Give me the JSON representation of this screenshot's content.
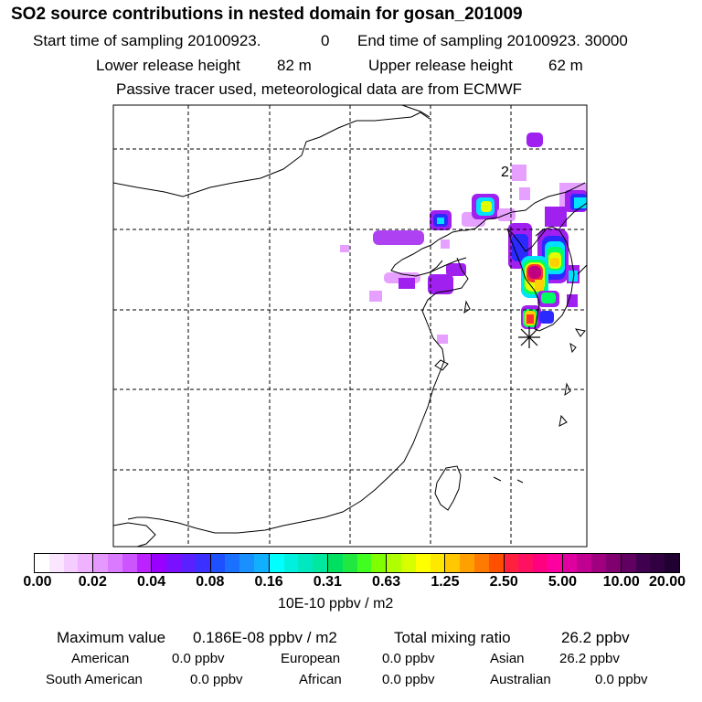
{
  "header": {
    "title": "SO2 source contributions in nested domain for gosan_201009",
    "start_label": "Start time of sampling 20100923.",
    "start_hhmmss": "0",
    "end_label": "End time of sampling 20100923. 30000",
    "lower_label": "Lower release height",
    "lower_value": "82 m",
    "upper_label": "Upper release height",
    "upper_value": "62 m",
    "note": "Passive tracer used, meteorological data are from ECMWF"
  },
  "map": {
    "grid_label": "2",
    "site_marker": "receptor-star",
    "plume_colors": [
      "#e6a0ff",
      "#a020f0",
      "#2a2aff",
      "#00e0ff",
      "#00ff60",
      "#e0ff00",
      "#ffd000",
      "#ff3030",
      "#c00080"
    ]
  },
  "colorbar": {
    "tick_labels": [
      "0.00",
      "0.02",
      "0.04",
      "0.08",
      "0.16",
      "0.31",
      "0.63",
      "1.25",
      "2.50",
      "5.00",
      "10.00",
      "20.00"
    ],
    "colors": [
      "#ffffff",
      "#fbe6ff",
      "#f5ccff",
      "#eeb2ff",
      "#e599ff",
      "#da7aff",
      "#cc55ff",
      "#bb22ff",
      "#9a00ff",
      "#7a10ff",
      "#5a20ff",
      "#3a30ff",
      "#1f50ff",
      "#1a70ff",
      "#1a90ff",
      "#10b0ff",
      "#00ffff",
      "#00f0e0",
      "#00e8c0",
      "#00e8a0",
      "#00e060",
      "#20e840",
      "#40ff20",
      "#80ff00",
      "#b0ff00",
      "#d8ff00",
      "#ffff00",
      "#ffe800",
      "#ffc800",
      "#ffa000",
      "#ff7a00",
      "#ff5000",
      "#ff2040",
      "#ff1060",
      "#ff0080",
      "#ff00a0",
      "#e000a0",
      "#c00090",
      "#a00080",
      "#800070",
      "#600060",
      "#400050",
      "#300040",
      "#200030"
    ],
    "units": "10E-10 ppbv / m2"
  },
  "summary": {
    "max_label": "Maximum value",
    "max_value": "0.186E-08 ppbv / m2",
    "total_label": "Total mixing ratio",
    "total_value": "26.2 ppbv",
    "regions": [
      {
        "name": "American",
        "value": "0.0 ppbv"
      },
      {
        "name": "European",
        "value": "0.0 ppbv"
      },
      {
        "name": "Asian",
        "value": "26.2 ppbv"
      },
      {
        "name": "South American",
        "value": "0.0 ppbv"
      },
      {
        "name": "African",
        "value": "0.0 ppbv"
      },
      {
        "name": "Australian",
        "value": "0.0 ppbv"
      }
    ]
  }
}
